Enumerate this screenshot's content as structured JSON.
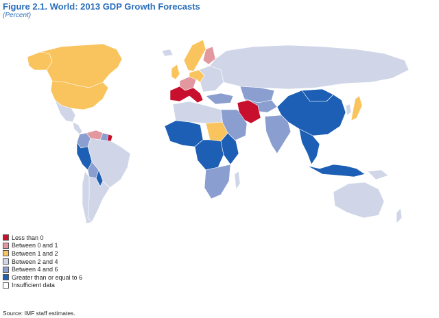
{
  "figure": {
    "title": "Figure 2.1.  World: 2013 GDP Growth Forecasts",
    "subtitle": "(Percent)"
  },
  "legend": {
    "items": [
      {
        "label": "Less than 0",
        "color": "#c8102e"
      },
      {
        "label": "Between 0 and 1",
        "color": "#e3979f"
      },
      {
        "label": "Between 1 and 2",
        "color": "#f9c45e"
      },
      {
        "label": "Between 2 and 4",
        "color": "#d0d6e8"
      },
      {
        "label": "Between 4 and 6",
        "color": "#8b9ed0"
      },
      {
        "label": "Greater than or equal to 6",
        "color": "#1d5fb4"
      },
      {
        "label": "Insufficient data",
        "color": "#ffffff"
      }
    ]
  },
  "source": "Source: IMF staff estimates.",
  "map": {
    "regions": [
      {
        "name": "canada",
        "category": 2
      },
      {
        "name": "usa",
        "category": 2
      },
      {
        "name": "alaska",
        "category": 2
      },
      {
        "name": "greenland",
        "category": 6
      },
      {
        "name": "mexico",
        "category": 3
      },
      {
        "name": "central-america",
        "category": 3
      },
      {
        "name": "colombia",
        "category": 4
      },
      {
        "name": "venezuela",
        "category": 1
      },
      {
        "name": "guyana",
        "category": 4
      },
      {
        "name": "suriname",
        "category": 0
      },
      {
        "name": "brazil",
        "category": 3
      },
      {
        "name": "peru",
        "category": 5
      },
      {
        "name": "bolivia",
        "category": 4
      },
      {
        "name": "paraguay",
        "category": 5
      },
      {
        "name": "argentina",
        "category": 3
      },
      {
        "name": "chile",
        "category": 3
      },
      {
        "name": "iceland",
        "category": 3
      },
      {
        "name": "scandinavia",
        "category": 2
      },
      {
        "name": "finland",
        "category": 1
      },
      {
        "name": "uk",
        "category": 2
      },
      {
        "name": "western-europe",
        "category": 1
      },
      {
        "name": "southern-europe",
        "category": 0
      },
      {
        "name": "germany",
        "category": 2
      },
      {
        "name": "eastern-europe",
        "category": 3
      },
      {
        "name": "russia",
        "category": 3
      },
      {
        "name": "kazakhstan",
        "category": 4
      },
      {
        "name": "central-asia",
        "category": 4
      },
      {
        "name": "mongolia",
        "category": 5
      },
      {
        "name": "china",
        "category": 5
      },
      {
        "name": "japan",
        "category": 2
      },
      {
        "name": "korea",
        "category": 3
      },
      {
        "name": "iran",
        "category": 0
      },
      {
        "name": "turkey",
        "category": 4
      },
      {
        "name": "arabia",
        "category": 4
      },
      {
        "name": "india",
        "category": 4
      },
      {
        "name": "southeast-asia",
        "category": 5
      },
      {
        "name": "indonesia",
        "category": 5
      },
      {
        "name": "papua",
        "category": 3
      },
      {
        "name": "australia",
        "category": 3
      },
      {
        "name": "new-zealand",
        "category": 3
      },
      {
        "name": "north-africa",
        "category": 3
      },
      {
        "name": "west-africa",
        "category": 5
      },
      {
        "name": "sudan",
        "category": 2
      },
      {
        "name": "central-africa",
        "category": 5
      },
      {
        "name": "east-africa",
        "category": 5
      },
      {
        "name": "southern-africa",
        "category": 4
      },
      {
        "name": "madagascar",
        "category": 3
      }
    ]
  }
}
